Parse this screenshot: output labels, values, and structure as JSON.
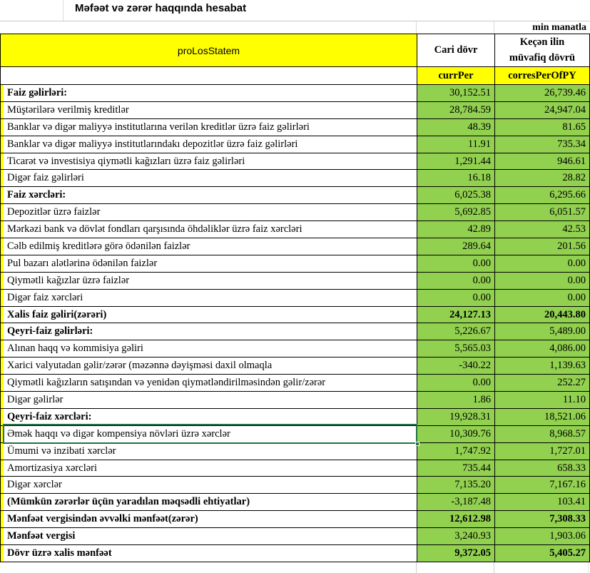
{
  "title": "Məfəət və zərər haqqında hesabat",
  "unit_label": "min manatla",
  "colors": {
    "header_yellow": "#ffff00",
    "value_green": "#92d050",
    "selection_green": "#217346",
    "border_black": "#000000"
  },
  "table": {
    "header": {
      "label_col": "proLosStatem",
      "col_current": "Cari dövr",
      "col_prior": "Keçən ilin\nmüvafiq dövrü"
    },
    "subheader": {
      "col_current": "currPer",
      "col_prior": "corresPerOfPY"
    },
    "rows": [
      {
        "label": "Faiz gəlirləri:",
        "current": "30,152.51",
        "prior": "26,739.46",
        "bold": true,
        "bold_values": false,
        "selected": false
      },
      {
        "label": "Müştərilərə verilmiş kreditlər",
        "current": "28,784.59",
        "prior": "24,947.04",
        "bold": false,
        "bold_values": false,
        "selected": false
      },
      {
        "label": "Banklar və digər maliyyə institutlarına verilən kreditlər üzrə faiz gəlirləri",
        "current": "48.39",
        "prior": "81.65",
        "bold": false,
        "bold_values": false,
        "selected": false
      },
      {
        "label": "Banklar və digər maliyyə institutlarındakı depozitlər üzrə faiz gəlirləri",
        "current": "11.91",
        "prior": "735.34",
        "bold": false,
        "bold_values": false,
        "selected": false
      },
      {
        "label": "Ticarət və investisiya qiymətli kağızları üzrə faiz gəlirləri",
        "current": "1,291.44",
        "prior": "946.61",
        "bold": false,
        "bold_values": false,
        "selected": false
      },
      {
        "label": "Digər faiz gəlirləri",
        "current": "16.18",
        "prior": "28.82",
        "bold": false,
        "bold_values": false,
        "selected": false
      },
      {
        "label": "Faiz xərcləri:",
        "current": "6,025.38",
        "prior": "6,295.66",
        "bold": true,
        "bold_values": false,
        "selected": false
      },
      {
        "label": "Depozitlər üzrə faizlər",
        "current": "5,692.85",
        "prior": "6,051.57",
        "bold": false,
        "bold_values": false,
        "selected": false
      },
      {
        "label": "Mərkəzi bank və dövlət fondları qarşısında öhdəliklər üzrə faiz xərcləri",
        "current": "42.89",
        "prior": "42.53",
        "bold": false,
        "bold_values": false,
        "selected": false
      },
      {
        "label": "Cəlb edilmiş kreditlərə görə ödənilən faizlər",
        "current": "289.64",
        "prior": "201.56",
        "bold": false,
        "bold_values": false,
        "selected": false
      },
      {
        "label": "Pul bazarı alətlərinə ödənilən faizlər",
        "current": "0.00",
        "prior": "0.00",
        "bold": false,
        "bold_values": false,
        "selected": false
      },
      {
        "label": "Qiymətli kağızlar üzrə faizlər",
        "current": "0.00",
        "prior": "0.00",
        "bold": false,
        "bold_values": false,
        "selected": false
      },
      {
        "label": "Digər faiz xərcləri",
        "current": "0.00",
        "prior": "0.00",
        "bold": false,
        "bold_values": false,
        "selected": false
      },
      {
        "label": "Xalis faiz gəliri(zərəri)",
        "current": "24,127.13",
        "prior": "20,443.80",
        "bold": true,
        "bold_values": true,
        "selected": false
      },
      {
        "label": "Qeyri-faiz gəlirləri:",
        "current": "5,226.67",
        "prior": "5,489.00",
        "bold": true,
        "bold_values": false,
        "selected": false
      },
      {
        "label": "Alınan haqq və kommisiya gəliri",
        "current": "5,565.03",
        "prior": "4,086.00",
        "bold": false,
        "bold_values": false,
        "selected": false
      },
      {
        "label": "Xarici valyutadan gəlir/zərər (məzənnə dəyişməsi daxil olmaqla",
        "current": "-340.22",
        "prior": "1,139.63",
        "bold": false,
        "bold_values": false,
        "selected": false
      },
      {
        "label": "Qiymətli kağızların satışından və yenidən qiymətləndirilməsindən gəlir/zərər",
        "current": "0.00",
        "prior": "252.27",
        "bold": false,
        "bold_values": false,
        "selected": false
      },
      {
        "label": "Digər gəlirlər",
        "current": "1.86",
        "prior": "11.10",
        "bold": false,
        "bold_values": false,
        "selected": false
      },
      {
        "label": "Qeyri-faiz xərcləri:",
        "current": "19,928.31",
        "prior": "18,521.06",
        "bold": true,
        "bold_values": false,
        "selected": false
      },
      {
        "label": "Əmək haqqı və digər kompensiya növləri üzrə xərclər",
        "current": "10,309.76",
        "prior": "8,968.57",
        "bold": false,
        "bold_values": false,
        "selected": true
      },
      {
        "label": "Ümumi və inzibati xərclər",
        "current": "1,747.92",
        "prior": "1,727.01",
        "bold": false,
        "bold_values": false,
        "selected": false
      },
      {
        "label": "Amortizasiya xərcləri",
        "current": "735.44",
        "prior": "658.33",
        "bold": false,
        "bold_values": false,
        "selected": false
      },
      {
        "label": "Digər xərclər",
        "current": "7,135.20",
        "prior": "7,167.16",
        "bold": false,
        "bold_values": false,
        "selected": false
      },
      {
        "label": "(Mümkün zərərlər üçün yaradılan məqsədli ehtiyatlar)",
        "current": "-3,187.48",
        "prior": "103.41",
        "bold": true,
        "bold_values": false,
        "selected": false
      },
      {
        "label": "Mənfəət vergisindən əvvəlki mənfəət(zərər)",
        "current": "12,612.98",
        "prior": "7,308.33",
        "bold": true,
        "bold_values": true,
        "selected": false
      },
      {
        "label": "Mənfəət vergisi",
        "current": "3,240.93",
        "prior": "1,903.06",
        "bold": true,
        "bold_values": false,
        "selected": false
      },
      {
        "label": "Dövr üzrə xalis mənfəət",
        "current": "9,372.05",
        "prior": "5,405.27",
        "bold": true,
        "bold_values": true,
        "selected": false
      }
    ]
  }
}
